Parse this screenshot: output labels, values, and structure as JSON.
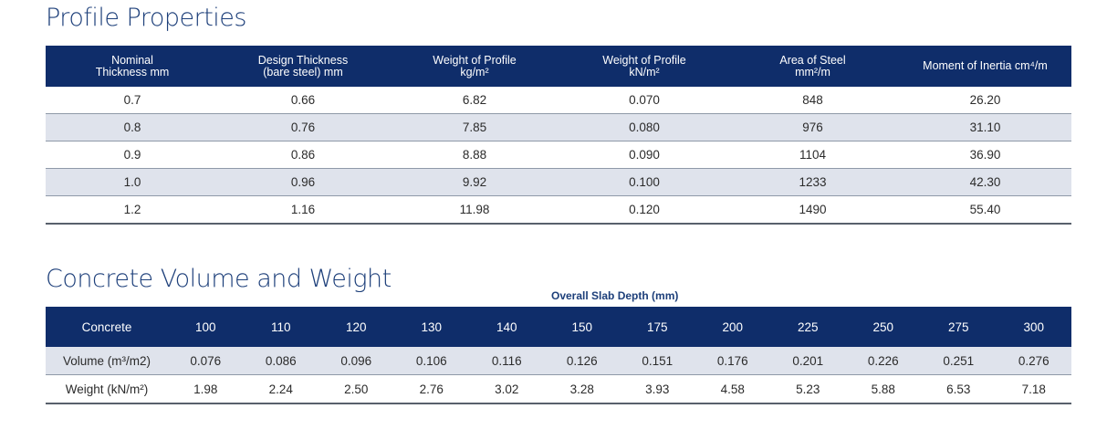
{
  "profile": {
    "title": "Profile Properties",
    "headers": [
      [
        "Nominal",
        "Thickness mm"
      ],
      [
        "Design Thickness",
        "(bare steel) mm"
      ],
      [
        "Weight of Profile",
        "kg/m²"
      ],
      [
        "Weight of Profile",
        "kN/m²"
      ],
      [
        "Area of Steel",
        "mm²/m"
      ],
      [
        "Moment of Inertia cm⁴/m"
      ]
    ],
    "rows": [
      [
        "0.7",
        "0.66",
        "6.82",
        "0.070",
        "848",
        "26.20"
      ],
      [
        "0.8",
        "0.76",
        "7.85",
        "0.080",
        "976",
        "31.10"
      ],
      [
        "0.9",
        "0.86",
        "8.88",
        "0.090",
        "1104",
        "36.90"
      ],
      [
        "1.0",
        "0.96",
        "9.92",
        "0.100",
        "1233",
        "42.30"
      ],
      [
        "1.2",
        "1.16",
        "11.98",
        "0.120",
        "1490",
        "55.40"
      ]
    ]
  },
  "concrete": {
    "title": "Concrete Volume and Weight",
    "caption": "Overall Slab Depth (mm)",
    "headers": [
      "Concrete",
      "100",
      "110",
      "120",
      "130",
      "140",
      "150",
      "175",
      "200",
      "225",
      "250",
      "275",
      "300"
    ],
    "rows": [
      [
        "Volume (m³/m2)",
        "0.076",
        "0.086",
        "0.096",
        "0.106",
        "0.116",
        "0.126",
        "0.151",
        "0.176",
        "0.201",
        "0.226",
        "0.251",
        "0.276"
      ],
      [
        "Weight (kN/m²)",
        "1.98",
        "2.24",
        "2.50",
        "2.76",
        "3.02",
        "3.28",
        "3.93",
        "4.58",
        "5.23",
        "5.88",
        "6.53",
        "7.18"
      ]
    ]
  },
  "colors": {
    "header_bg": "#0f2d6a",
    "title": "#1d3f7a",
    "alt_row": "#dfe3ec"
  }
}
